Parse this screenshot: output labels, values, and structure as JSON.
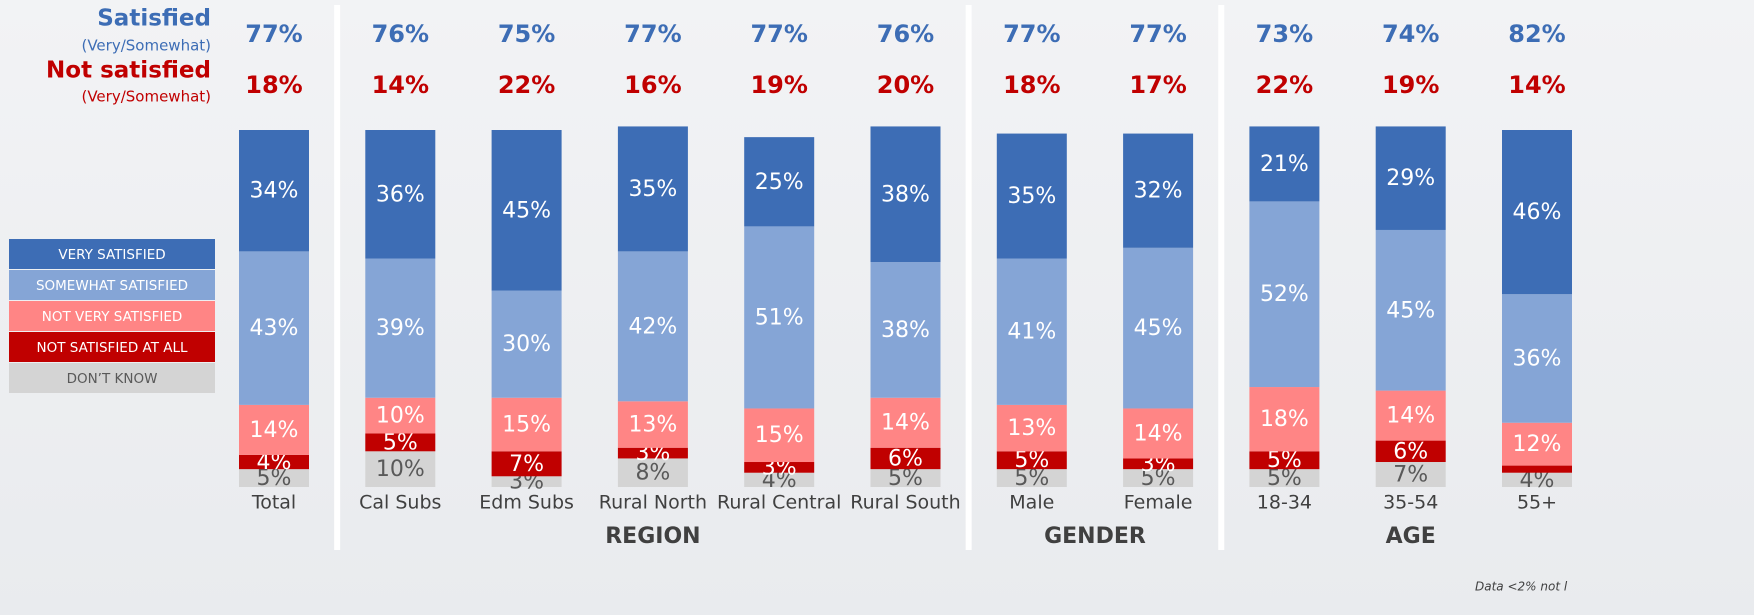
{
  "chart_data": {
    "type": "bar",
    "stacked": true,
    "categories": [
      "Total",
      "Cal Subs",
      "Edm Subs",
      "Rural North",
      "Rural Central",
      "Rural South",
      "Male",
      "Female",
      "18-34",
      "35-54",
      "55+"
    ],
    "groups": [
      {
        "label": "REGION",
        "members": [
          1,
          2,
          3,
          4,
          5
        ]
      },
      {
        "label": "GENDER",
        "members": [
          6,
          7
        ]
      },
      {
        "label": "AGE",
        "members": [
          8,
          9,
          10
        ]
      }
    ],
    "summary": [
      {
        "label": "Satisfied",
        "sublabel": "(Very/Somewhat)",
        "color": "#3d6db5",
        "values": [
          77,
          76,
          75,
          77,
          77,
          76,
          77,
          77,
          73,
          74,
          82
        ],
        "value_labels": [
          "77%",
          "76%",
          "75%",
          "77%",
          "77%",
          "76%",
          "77%",
          "77%",
          "73%",
          "74%",
          "82%"
        ]
      },
      {
        "label": "Not satisfied",
        "sublabel": "(Very/Somewhat)",
        "color": "#c00000",
        "values": [
          18,
          14,
          22,
          16,
          19,
          20,
          18,
          17,
          22,
          19,
          14
        ],
        "value_labels": [
          "18%",
          "14%",
          "22%",
          "16%",
          "19%",
          "20%",
          "18%",
          "17%",
          "22%",
          "19%",
          "14%"
        ]
      }
    ],
    "series": [
      {
        "name": "DON’T KNOW",
        "color": "#d4d4d4",
        "label_color": "#595959",
        "values": [
          5,
          10,
          3,
          8,
          4,
          5,
          5,
          5,
          5,
          7,
          4
        ],
        "value_labels": [
          "5%",
          "10%",
          "3%",
          "8%",
          "4%",
          "5%",
          "5%",
          "5%",
          "5%",
          "7%",
          "4%"
        ]
      },
      {
        "name": "NOT SATISFIED AT ALL",
        "color": "#c00000",
        "label_color": "#ffffff",
        "values": [
          4,
          5,
          7,
          3,
          3,
          6,
          5,
          3,
          5,
          6,
          2
        ],
        "value_labels": [
          "4%",
          "5%",
          "7%",
          "3%",
          "3%",
          "6%",
          "5%",
          "3%",
          "5%",
          "6%",
          null
        ]
      },
      {
        "name": "NOT VERY SATISFIED",
        "color": "#ff8585",
        "label_color": "#ffffff",
        "values": [
          14,
          10,
          15,
          13,
          15,
          14,
          13,
          14,
          18,
          14,
          12
        ],
        "value_labels": [
          "14%",
          "10%",
          "15%",
          "13%",
          "15%",
          "14%",
          "13%",
          "14%",
          "18%",
          "14%",
          "12%"
        ]
      },
      {
        "name": "SOMEWHAT SATISFIED",
        "color": "#85a5d6",
        "label_color": "#ffffff",
        "values": [
          43,
          39,
          30,
          42,
          51,
          38,
          41,
          45,
          52,
          45,
          36
        ],
        "value_labels": [
          "43%",
          "39%",
          "30%",
          "42%",
          "51%",
          "38%",
          "41%",
          "45%",
          "52%",
          "45%",
          "36%"
        ]
      },
      {
        "name": "VERY SATISFIED",
        "color": "#3d6db5",
        "label_color": "#ffffff",
        "values": [
          34,
          36,
          45,
          35,
          25,
          38,
          35,
          32,
          21,
          29,
          46
        ],
        "value_labels": [
          "34%",
          "36%",
          "45%",
          "35%",
          "25%",
          "38%",
          "35%",
          "32%",
          "21%",
          "29%",
          "46%"
        ]
      }
    ],
    "note": "Data <2% not l"
  }
}
